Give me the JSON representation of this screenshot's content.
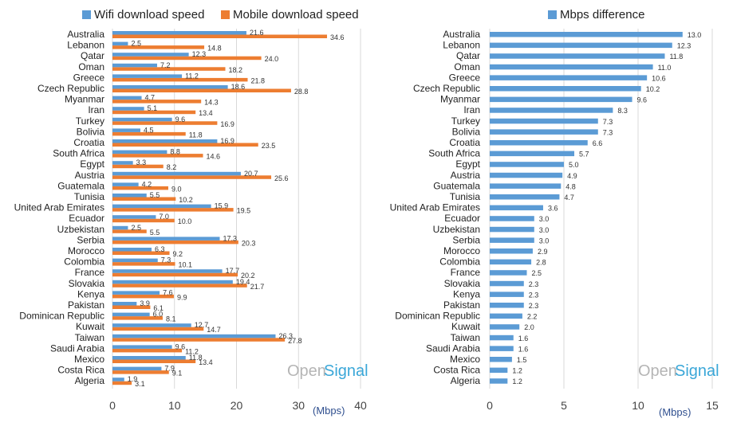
{
  "colors": {
    "wifi": "#5b9bd5",
    "mobile": "#ed7d31",
    "difference": "#5b9bd5",
    "grid": "#d9d9d9",
    "brand_open": "#b5b5b5",
    "brand_signal": "#3aa7d8"
  },
  "left_legend": {
    "wifi_label": "Wifi download speed",
    "mobile_label": "Mobile download speed"
  },
  "right_legend": {
    "diff_label": "Mbps difference"
  },
  "brand": {
    "open": "Open",
    "signal": "Signal"
  },
  "chart_data": [
    {
      "type": "bar",
      "orientation": "horizontal",
      "categories": [
        "Australia",
        "Lebanon",
        "Qatar",
        "Oman",
        "Greece",
        "Czech Republic",
        "Myanmar",
        "Iran",
        "Turkey",
        "Bolivia",
        "Croatia",
        "South Africa",
        "Egypt",
        "Austria",
        "Guatemala",
        "Tunisia",
        "United Arab Emirates",
        "Ecuador",
        "Uzbekistan",
        "Serbia",
        "Morocco",
        "Colombia",
        "France",
        "Slovakia",
        "Kenya",
        "Pakistan",
        "Dominican Republic",
        "Kuwait",
        "Taiwan",
        "Saudi Arabia",
        "Mexico",
        "Costa Rica",
        "Algeria"
      ],
      "series": [
        {
          "name": "Wifi download speed",
          "values": [
            21.6,
            2.5,
            12.3,
            7.2,
            11.2,
            18.6,
            4.7,
            5.1,
            9.6,
            4.5,
            16.9,
            8.8,
            3.3,
            20.7,
            4.2,
            5.5,
            15.9,
            7.0,
            2.5,
            17.3,
            6.3,
            7.3,
            17.7,
            19.4,
            7.6,
            3.9,
            6.0,
            12.7,
            26.3,
            9.6,
            11.8,
            7.9,
            1.9
          ]
        },
        {
          "name": "Mobile download speed",
          "values": [
            34.6,
            14.8,
            24.0,
            18.2,
            21.8,
            28.8,
            14.3,
            13.4,
            16.9,
            11.8,
            23.5,
            14.6,
            8.2,
            25.6,
            9.0,
            10.2,
            19.5,
            10.0,
            5.5,
            20.3,
            9.2,
            10.1,
            20.2,
            21.7,
            9.9,
            6.1,
            8.1,
            14.7,
            27.8,
            11.2,
            13.4,
            9.1,
            3.1
          ]
        }
      ],
      "value_labels": {
        "wifi": [
          "21.6",
          "2.5",
          "12.3",
          "7.2",
          "11.2",
          "18.6",
          "4.7",
          "5.1",
          "9.6",
          "4.5",
          "16.9",
          "8.8",
          "3.3",
          "20.7",
          "4.2",
          "5.5",
          "15.9",
          "7.0",
          "2.5",
          "17.3",
          "6.3",
          "7.3",
          "17.7",
          "19.4",
          "7.6",
          "3.9",
          "6.0",
          "12.7",
          "26.3",
          "9.6",
          "11.8",
          "7.9",
          "1.9"
        ],
        "mobile": [
          "34.6",
          "14.8",
          "24.0",
          "18.2",
          "21.8",
          "28.8",
          "14.3",
          "13.4",
          "16.9",
          "11.8",
          "23.5",
          "14.6",
          "8.2",
          "25.6",
          "9.0",
          "10.2",
          "19.5",
          "10.0",
          "5.5",
          "20.3",
          "9.2",
          "10.1",
          "20.2",
          "21.7",
          "9.9",
          "6.1",
          "8.1",
          "14.7",
          "27.8",
          "11.2",
          "13.4",
          "9.1",
          "3.1"
        ]
      },
      "xlim": [
        0,
        40
      ],
      "xticks": [
        0,
        10,
        20,
        30,
        40
      ],
      "xtick_labels": [
        "0",
        "10",
        "20",
        "30",
        "40"
      ],
      "xlabel": "(Mbps)",
      "grid": true,
      "legend": "top"
    },
    {
      "type": "bar",
      "orientation": "horizontal",
      "categories": [
        "Australia",
        "Lebanon",
        "Qatar",
        "Oman",
        "Greece",
        "Czech Republic",
        "Myanmar",
        "Iran",
        "Turkey",
        "Bolivia",
        "Croatia",
        "South Africa",
        "Egypt",
        "Austria",
        "Guatemala",
        "Tunisia",
        "United Arab Emirates",
        "Ecuador",
        "Uzbekistan",
        "Serbia",
        "Morocco",
        "Colombia",
        "France",
        "Slovakia",
        "Kenya",
        "Pakistan",
        "Dominican Republic",
        "Kuwait",
        "Taiwan",
        "Saudi Arabia",
        "Mexico",
        "Costa Rica",
        "Algeria"
      ],
      "series": [
        {
          "name": "Mbps difference",
          "values": [
            13.0,
            12.3,
            11.8,
            11.0,
            10.6,
            10.2,
            9.6,
            8.3,
            7.3,
            7.3,
            6.6,
            5.7,
            5.0,
            4.9,
            4.8,
            4.7,
            3.6,
            3.0,
            3.0,
            3.0,
            2.9,
            2.8,
            2.5,
            2.3,
            2.3,
            2.3,
            2.2,
            2.0,
            1.6,
            1.6,
            1.5,
            1.2,
            1.2
          ]
        }
      ],
      "value_labels": [
        "13.0",
        "12.3",
        "11.8",
        "11.0",
        "10.6",
        "10.2",
        "9.6",
        "8.3",
        "7.3",
        "7.3",
        "6.6",
        "5.7",
        "5.0",
        "4.9",
        "4.8",
        "4.7",
        "3.6",
        "3.0",
        "3.0",
        "3.0",
        "2.9",
        "2.8",
        "2.5",
        "2.3",
        "2.3",
        "2.3",
        "2.2",
        "2.0",
        "1.6",
        "1.6",
        "1.5",
        "1.2",
        "1.2"
      ],
      "xlim": [
        0,
        15
      ],
      "xticks": [
        0,
        5,
        10,
        15
      ],
      "xtick_labels": [
        "0",
        "5",
        "10",
        "15"
      ],
      "xlabel": "(Mbps)",
      "grid": true,
      "legend": "top"
    }
  ]
}
